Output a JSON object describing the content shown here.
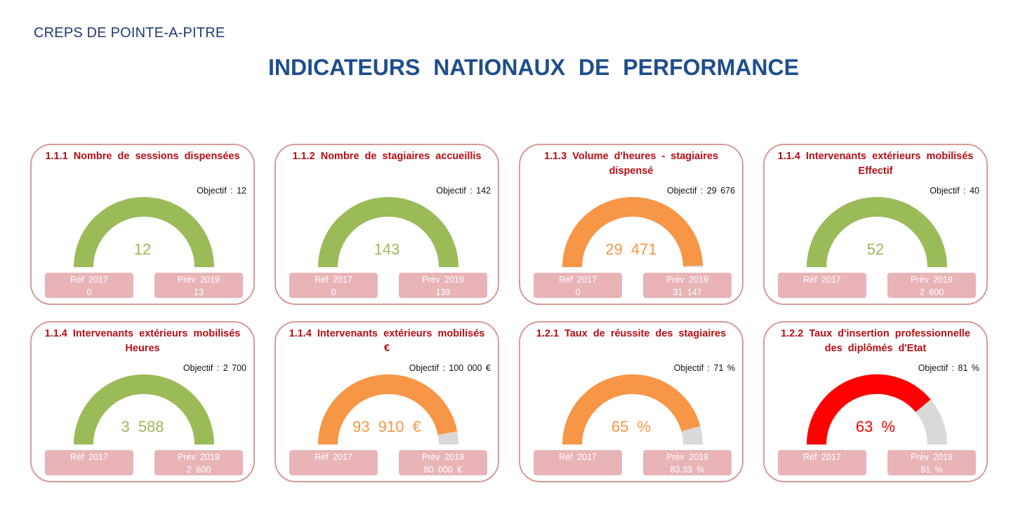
{
  "header": {
    "org": "CREPS DE POINTE-A-PITRE",
    "title": "INDICATEURS  NATIONAUX  DE  PERFORMANCE"
  },
  "colors": {
    "green": "#9bbb59",
    "orange": "#f79646",
    "red": "#ff0000",
    "track": "#d9d9d9",
    "title_red": "#b50f16",
    "pill": "#e8b4b8",
    "border": "#d99a9a"
  },
  "cards": [
    {
      "title": "1.1.1  Nombre  de  sessions  dispensées",
      "objective": "Objectif  :  12",
      "value": "12",
      "fill": 1.0,
      "color": "green",
      "ref_label": "Réf  2017",
      "ref_value": "0",
      "prev_label": "Prév  2019",
      "prev_value": "13"
    },
    {
      "title": "1.1.2  Nombre  de  stagiaires  accueillis",
      "objective": "Objectif  :  142",
      "value": "143",
      "fill": 1.0,
      "color": "green",
      "ref_label": "Réf  2017",
      "ref_value": "0",
      "prev_label": "Prév  2019",
      "prev_value": "139"
    },
    {
      "title": "1.1.3  Volume  d'heures  -  stagiaires  dispensé",
      "objective": "Objectif  :  29  676",
      "value": "29  471",
      "fill": 0.993,
      "color": "orange",
      "ref_label": "Réf  2017",
      "ref_value": "0",
      "prev_label": "Prév  2019",
      "prev_value": "31  147"
    },
    {
      "title": "1.1.4  Intervenants  extérieurs  mobilisés  Effectif",
      "objective": "Objectif  :  40",
      "value": "52",
      "fill": 1.0,
      "color": "green",
      "ref_label": "Réf  2017",
      "ref_value": "",
      "prev_label": "Prév  2019",
      "prev_value": "2  600"
    },
    {
      "title": "1.1.4  Intervenants  extérieurs  mobilisés  Heures",
      "objective": "Objectif  :  2  700",
      "value": "3  588",
      "fill": 1.0,
      "color": "green",
      "ref_label": "Réf  2017",
      "ref_value": "",
      "prev_label": "Prév  2019",
      "prev_value": "2  600"
    },
    {
      "title": "1.1.4  Intervenants  extérieurs  mobilisés  €",
      "objective": "Objectif  :  100  000  €",
      "value": "93  910  €",
      "fill": 0.9391,
      "color": "orange",
      "ref_label": "Réf  2017",
      "ref_value": "",
      "prev_label": "Prév  2019",
      "prev_value": "80  000  €"
    },
    {
      "title": "1.2.1  Taux  de  réussite  des  stagiaires",
      "objective": "Objectif  :  71  %",
      "value": "65  %",
      "fill": 0.9155,
      "color": "orange",
      "ref_label": "Réf  2017",
      "ref_value": "",
      "prev_label": "Prév  2019",
      "prev_value": "83.33  %"
    },
    {
      "title": "1.2.2  Taux  d'insertion  professionnelle  des  diplômés  d'Etat",
      "objective": "Objectif  :  81  %",
      "value": "63  %",
      "fill": 0.7778,
      "color": "red",
      "ref_label": "Réf  2017",
      "ref_value": "",
      "prev_label": "Prév  2019",
      "prev_value": "81  %"
    }
  ]
}
